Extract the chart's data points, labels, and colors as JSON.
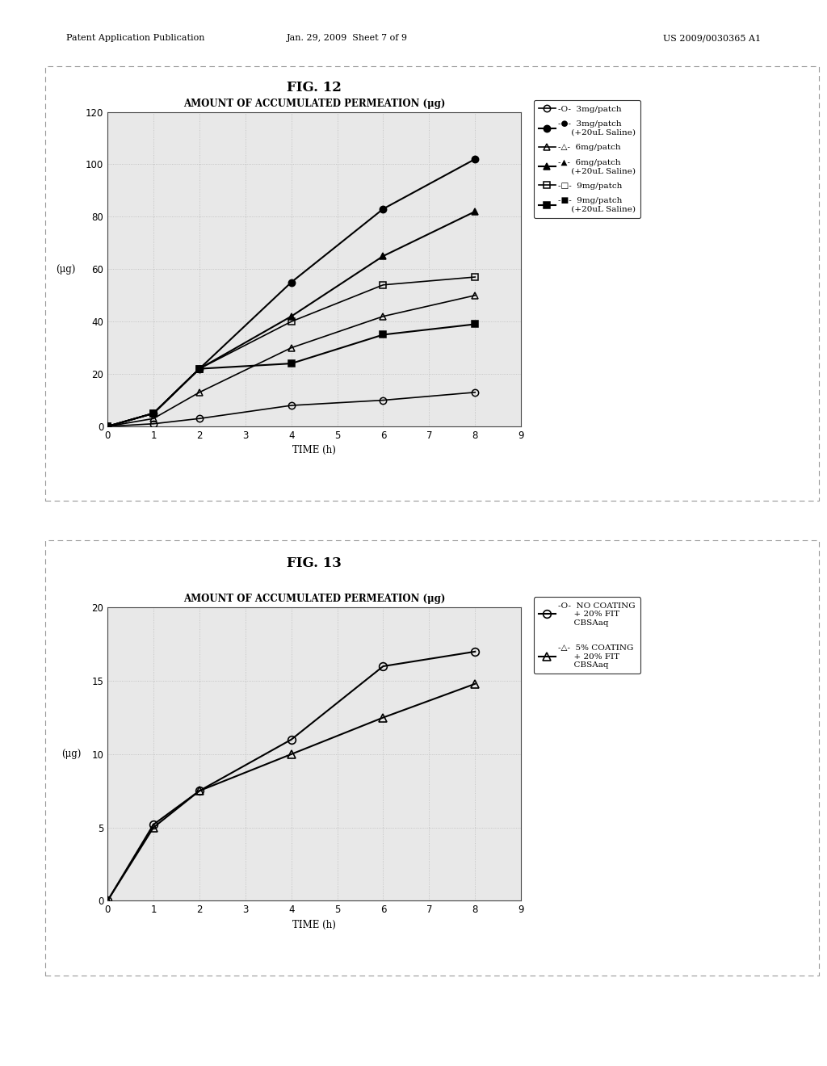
{
  "fig12": {
    "title": "FIG. 12",
    "chart_title": "AMOUNT OF ACCUMULATED PERMEATION (μg)",
    "xlabel": "TIME (h)",
    "ylabel": "(μg)",
    "xlim": [
      0,
      9
    ],
    "ylim": [
      0,
      120
    ],
    "xticks": [
      0,
      1,
      2,
      3,
      4,
      5,
      6,
      7,
      8,
      9
    ],
    "yticks": [
      0,
      20,
      40,
      60,
      80,
      100,
      120
    ],
    "series": [
      {
        "label": "-O-  3mg/patch",
        "x": [
          0,
          1,
          2,
          4,
          6,
          8
        ],
        "y": [
          0,
          1,
          3,
          8,
          10,
          13
        ],
        "marker": "o",
        "fillstyle": "none",
        "linewidth": 1.2,
        "markersize": 6
      },
      {
        "label": "-●-  3mg/patch\n     (+20uL Saline)",
        "x": [
          0,
          1,
          2,
          4,
          6,
          8
        ],
        "y": [
          0,
          5,
          22,
          55,
          83,
          102
        ],
        "marker": "o",
        "fillstyle": "full",
        "linewidth": 1.5,
        "markersize": 6
      },
      {
        "label": "-△-  6mg/patch",
        "x": [
          0,
          1,
          2,
          4,
          6,
          8
        ],
        "y": [
          0,
          3,
          13,
          30,
          42,
          50
        ],
        "marker": "^",
        "fillstyle": "none",
        "linewidth": 1.2,
        "markersize": 6
      },
      {
        "label": "-▲-  6mg/patch\n     (+20uL Saline)",
        "x": [
          0,
          1,
          2,
          4,
          6,
          8
        ],
        "y": [
          0,
          5,
          22,
          42,
          65,
          82
        ],
        "marker": "^",
        "fillstyle": "full",
        "linewidth": 1.5,
        "markersize": 6
      },
      {
        "label": "-□-  9mg/patch",
        "x": [
          0,
          1,
          2,
          4,
          6,
          8
        ],
        "y": [
          0,
          5,
          22,
          40,
          54,
          57
        ],
        "marker": "s",
        "fillstyle": "none",
        "linewidth": 1.2,
        "markersize": 6
      },
      {
        "label": "-■-  9mg/patch\n     (+20uL Saline)",
        "x": [
          0,
          1,
          2,
          4,
          6,
          8
        ],
        "y": [
          0,
          5,
          22,
          24,
          35,
          39
        ],
        "marker": "s",
        "fillstyle": "full",
        "linewidth": 1.5,
        "markersize": 6
      }
    ]
  },
  "fig13": {
    "title": "FIG. 13",
    "chart_title": "AMOUNT OF ACCUMULATED PERMEATION (μg)",
    "xlabel": "TIME (h)",
    "ylabel": "(μg)",
    "xlim": [
      0,
      9
    ],
    "ylim": [
      0,
      20
    ],
    "xticks": [
      0,
      1,
      2,
      3,
      4,
      5,
      6,
      7,
      8,
      9
    ],
    "yticks": [
      0,
      5,
      10,
      15,
      20
    ],
    "series": [
      {
        "label": "-O-  NO COATING\n      + 20% FIT\n      CBSAaq",
        "x": [
          0,
          1,
          2,
          4,
          6,
          8
        ],
        "y": [
          0,
          5.2,
          7.5,
          11,
          16,
          17
        ],
        "marker": "o",
        "fillstyle": "none",
        "linewidth": 1.5,
        "markersize": 7
      },
      {
        "label": "-△-  5% COATING\n      + 20% FIT\n      CBSAaq",
        "x": [
          0,
          1,
          2,
          4,
          6,
          8
        ],
        "y": [
          0,
          5.0,
          7.5,
          10,
          12.5,
          14.8
        ],
        "marker": "^",
        "fillstyle": "none",
        "linewidth": 1.5,
        "markersize": 7
      }
    ]
  },
  "header_left": "Patent Application Publication",
  "header_mid": "Jan. 29, 2009  Sheet 7 of 9",
  "header_right": "US 2009/0030365 A1",
  "bg_color": "#ffffff",
  "plot_bg_color": "#e8e8e8",
  "grid_color": "#bbbbbb",
  "text_color": "#000000",
  "outer_box_color": "#999999"
}
